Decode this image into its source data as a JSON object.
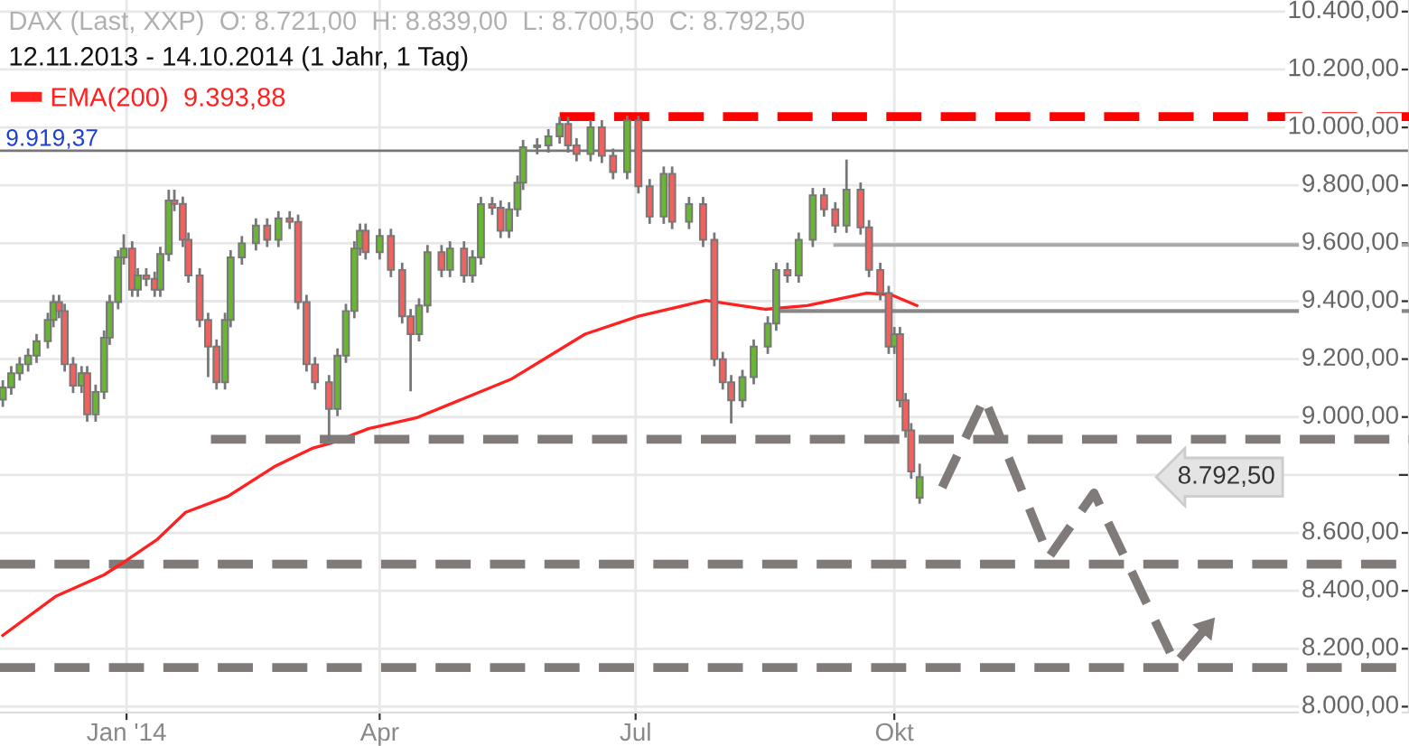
{
  "chart_data": {
    "type": "candlestick",
    "title": "DAX (Last, XXP)  O: 8.721,00  H: 8.839,00  L: 8.700,50  C: 8.792,50",
    "subtitle": "12.11.2013 - 14.10.2014 (1 Jahr, 1 Tag)",
    "x": [
      "2013-11-18",
      "2013-11-21",
      "2013-11-24",
      "2013-11-27",
      "2013-11-30",
      "2013-12-04",
      "2013-12-06",
      "2013-12-08",
      "2013-12-10",
      "2013-12-13",
      "2013-12-16",
      "2013-12-18",
      "2013-12-21",
      "2013-12-24",
      "2013-12-26",
      "2013-12-29",
      "2013-12-31",
      "2014-01-03",
      "2014-01-05",
      "2014-01-08",
      "2014-01-11",
      "2014-01-13",
      "2014-01-16",
      "2014-01-18",
      "2014-01-21",
      "2014-01-23",
      "2014-01-27",
      "2014-01-30",
      "2014-02-02",
      "2014-02-05",
      "2014-02-07",
      "2014-02-11",
      "2014-02-16",
      "2014-02-20",
      "2014-02-24",
      "2014-02-28",
      "2014-03-03",
      "2014-03-06",
      "2014-03-09",
      "2014-03-14",
      "2014-03-17",
      "2014-03-20",
      "2014-03-23",
      "2014-03-25",
      "2014-03-27",
      "2014-04-01",
      "2014-04-05",
      "2014-04-09",
      "2014-04-12",
      "2014-04-15",
      "2014-04-18",
      "2014-04-23",
      "2014-04-26",
      "2014-05-01",
      "2014-05-04",
      "2014-05-07",
      "2014-05-11",
      "2014-05-14",
      "2014-05-17",
      "2014-05-20",
      "2014-05-22",
      "2014-05-27",
      "2014-05-31",
      "2014-06-04",
      "2014-06-07",
      "2014-06-10",
      "2014-06-15",
      "2014-06-19",
      "2014-06-23",
      "2014-06-28",
      "2014-07-02",
      "2014-07-06",
      "2014-07-11",
      "2014-07-14",
      "2014-07-20",
      "2014-07-25",
      "2014-07-29",
      "2014-08-01",
      "2014-08-04",
      "2014-08-08",
      "2014-08-12",
      "2014-08-17",
      "2014-08-20",
      "2014-08-24",
      "2014-08-28",
      "2014-09-02",
      "2014-09-06",
      "2014-09-10",
      "2014-09-14",
      "2014-09-19",
      "2014-09-22",
      "2014-09-26",
      "2014-09-29",
      "2014-10-01",
      "2014-10-03",
      "2014-10-05",
      "2014-10-07",
      "2014-10-10"
    ],
    "ohlc": [
      [
        9060,
        9127,
        9035,
        9102
      ],
      [
        9102,
        9176,
        9077,
        9151
      ],
      [
        9151,
        9207,
        9126,
        9182
      ],
      [
        9182,
        9237,
        9157,
        9212
      ],
      [
        9212,
        9287,
        9187,
        9262
      ],
      [
        9262,
        9360,
        9237,
        9335
      ],
      [
        9335,
        9422,
        9310,
        9397
      ],
      [
        9397,
        9422,
        9341,
        9366
      ],
      [
        9366,
        9391,
        9157,
        9182
      ],
      [
        9182,
        9207,
        9083,
        9108
      ],
      [
        9108,
        9176,
        9083,
        9151
      ],
      [
        9151,
        9176,
        8984,
        9009
      ],
      [
        9009,
        9112,
        8984,
        9087
      ],
      [
        9087,
        9299,
        9062,
        9274
      ],
      [
        9274,
        9422,
        9249,
        9397
      ],
      [
        9397,
        9576,
        9372,
        9551
      ],
      [
        9551,
        9631,
        9526,
        9582
      ],
      [
        9582,
        9607,
        9415,
        9440
      ],
      [
        9440,
        9514,
        9415,
        9489
      ],
      [
        9489,
        9514,
        9452,
        9477
      ],
      [
        9477,
        9502,
        9415,
        9440
      ],
      [
        9440,
        9588,
        9415,
        9563
      ],
      [
        9563,
        9785,
        9538,
        9748
      ],
      [
        9748,
        9785,
        9711,
        9736
      ],
      [
        9736,
        9761,
        9587,
        9612
      ],
      [
        9612,
        9637,
        9464,
        9489
      ],
      [
        9489,
        9514,
        9310,
        9335
      ],
      [
        9335,
        9360,
        9138,
        9243
      ],
      [
        9243,
        9268,
        9095,
        9120
      ],
      [
        9120,
        9360,
        9095,
        9335
      ],
      [
        9335,
        9576,
        9310,
        9551
      ],
      [
        9551,
        9625,
        9526,
        9600
      ],
      [
        9600,
        9686,
        9575,
        9661
      ],
      [
        9661,
        9686,
        9587,
        9612
      ],
      [
        9612,
        9711,
        9587,
        9686
      ],
      [
        9686,
        9711,
        9649,
        9674
      ],
      [
        9674,
        9699,
        9372,
        9397
      ],
      [
        9397,
        9422,
        9157,
        9182
      ],
      [
        9182,
        9207,
        9095,
        9120
      ],
      [
        9120,
        9145,
        8917,
        9028
      ],
      [
        9028,
        9237,
        9003,
        9212
      ],
      [
        9212,
        9391,
        9187,
        9366
      ],
      [
        9366,
        9607,
        9341,
        9582
      ],
      [
        9582,
        9668,
        9557,
        9643
      ],
      [
        9643,
        9668,
        9544,
        9569
      ],
      [
        9569,
        9650,
        9544,
        9625
      ],
      [
        9625,
        9650,
        9483,
        9508
      ],
      [
        9508,
        9533,
        9323,
        9348
      ],
      [
        9348,
        9373,
        9089,
        9286
      ],
      [
        9286,
        9410,
        9261,
        9385
      ],
      [
        9385,
        9594,
        9360,
        9569
      ],
      [
        9569,
        9594,
        9483,
        9508
      ],
      [
        9508,
        9607,
        9483,
        9582
      ],
      [
        9582,
        9607,
        9464,
        9489
      ],
      [
        9489,
        9576,
        9464,
        9551
      ],
      [
        9551,
        9760,
        9526,
        9735
      ],
      [
        9735,
        9760,
        9698,
        9723
      ],
      [
        9723,
        9748,
        9618,
        9643
      ],
      [
        9643,
        9742,
        9618,
        9717
      ],
      [
        9717,
        9834,
        9692,
        9809
      ],
      [
        9809,
        9957,
        9784,
        9932
      ],
      [
        9932,
        9963,
        9907,
        9938
      ],
      [
        9938,
        9994,
        9913,
        9969
      ],
      [
        9969,
        10037,
        9944,
        10012
      ],
      [
        10012,
        10037,
        9913,
        9938
      ],
      [
        9938,
        9963,
        9883,
        9908
      ],
      [
        9908,
        10025,
        9883,
        10000
      ],
      [
        10000,
        10025,
        9877,
        9902
      ],
      [
        9902,
        9927,
        9821,
        9846
      ],
      [
        9846,
        10040,
        9821,
        10024
      ],
      [
        10024,
        10040,
        9772,
        9797
      ],
      [
        9797,
        9822,
        9667,
        9692
      ],
      [
        9692,
        9865,
        9667,
        9840
      ],
      [
        9840,
        9865,
        9649,
        9674
      ],
      [
        9674,
        9760,
        9649,
        9735
      ],
      [
        9735,
        9760,
        9587,
        9612
      ],
      [
        9612,
        9637,
        9175,
        9200
      ],
      [
        9200,
        9225,
        9095,
        9120
      ],
      [
        9120,
        9145,
        8978,
        9058
      ],
      [
        9058,
        9163,
        9033,
        9138
      ],
      [
        9138,
        9268,
        9113,
        9243
      ],
      [
        9243,
        9348,
        9218,
        9323
      ],
      [
        9323,
        9533,
        9298,
        9508
      ],
      [
        9508,
        9533,
        9464,
        9489
      ],
      [
        9489,
        9637,
        9464,
        9612
      ],
      [
        9612,
        9791,
        9587,
        9766
      ],
      [
        9766,
        9791,
        9692,
        9717
      ],
      [
        9717,
        9742,
        9636,
        9661
      ],
      [
        9661,
        9889,
        9636,
        9785
      ],
      [
        9785,
        9810,
        9630,
        9655
      ],
      [
        9655,
        9680,
        9483,
        9508
      ],
      [
        9508,
        9533,
        9403,
        9428
      ],
      [
        9428,
        9453,
        9218,
        9243
      ],
      [
        9243,
        9311,
        9218,
        9286
      ],
      [
        9286,
        9311,
        9033,
        9058
      ],
      [
        9058,
        9083,
        8929,
        8954
      ],
      [
        8954,
        8979,
        8787,
        8812
      ],
      [
        8721,
        8839,
        8700.5,
        8792.5
      ]
    ],
    "colors": [
      "#6ab536",
      "#6ab536",
      "#6ab536",
      "#6ab536",
      "#6ab536",
      "#6ab536",
      "#6ab536",
      "#f0625f",
      "#f0625f",
      "#f0625f",
      "#6ab536",
      "#f0625f",
      "#6ab536",
      "#6ab536",
      "#6ab536",
      "#6ab536",
      "#6ab536",
      "#f0625f",
      "#6ab536",
      "#f0625f",
      "#f0625f",
      "#6ab536",
      "#6ab536",
      "#f0625f",
      "#f0625f",
      "#f0625f",
      "#f0625f",
      "#f0625f",
      "#f0625f",
      "#6ab536",
      "#6ab536",
      "#6ab536",
      "#6ab536",
      "#f0625f",
      "#6ab536",
      "#f0625f",
      "#f0625f",
      "#f0625f",
      "#f0625f",
      "#f0625f",
      "#6ab536",
      "#6ab536",
      "#6ab536",
      "#6ab536",
      "#f0625f",
      "#6ab536",
      "#f0625f",
      "#f0625f",
      "#f0625f",
      "#6ab536",
      "#6ab536",
      "#f0625f",
      "#6ab536",
      "#f0625f",
      "#6ab536",
      "#6ab536",
      "#f0625f",
      "#f0625f",
      "#6ab536",
      "#6ab536",
      "#6ab536",
      "#6ab536",
      "#6ab536",
      "#6ab536",
      "#f0625f",
      "#f0625f",
      "#6ab536",
      "#f0625f",
      "#f0625f",
      "#6ab536",
      "#f0625f",
      "#f0625f",
      "#6ab536",
      "#f0625f",
      "#6ab536",
      "#f0625f",
      "#f0625f",
      "#f0625f",
      "#f0625f",
      "#6ab536",
      "#6ab536",
      "#6ab536",
      "#6ab536",
      "#f0625f",
      "#6ab536",
      "#6ab536",
      "#f0625f",
      "#f0625f",
      "#6ab536",
      "#f0625f",
      "#f0625f",
      "#f0625f",
      "#f0625f",
      "#6ab536",
      "#f0625f",
      "#f0625f",
      "#f0625f",
      "#6ab536"
    ],
    "series": [
      {
        "type": "line",
        "name": "EMA(200)  9.393,88",
        "color": "#ff2020",
        "line_style": "solid",
        "x": [
          "2013-11-18",
          "2013-12-07",
          "2013-12-24",
          "2014-01-01",
          "2014-01-12",
          "2014-01-22",
          "2014-02-06",
          "2014-02-23",
          "2014-03-08",
          "2014-03-15",
          "2014-03-28",
          "2014-04-14",
          "2014-05-18",
          "2014-06-13",
          "2014-07-02",
          "2014-07-26",
          "2014-08-16",
          "2014-08-31",
          "2014-09-21",
          "2014-09-30",
          "2014-10-09"
        ],
        "values": [
          8246,
          8382,
          8455,
          8505,
          8578,
          8671,
          8726,
          8831,
          8892,
          8911,
          8960,
          8997,
          9132,
          9286,
          9348,
          9403,
          9372,
          9385,
          9428,
          9422,
          9385
        ]
      },
      {
        "type": "line",
        "color": "#ff0000",
        "line_style": "dashed",
        "x": [
          "2014-06-04",
          "2015-04-02"
        ],
        "values": [
          10037,
          10037
        ]
      },
      {
        "type": "line",
        "color": "#aaaaaa",
        "line_style": "solid",
        "x": [
          "2014-09-10",
          "2015-04-02"
        ],
        "values": [
          9594,
          9594
        ]
      },
      {
        "type": "line",
        "color": "#888888",
        "line_style": "solid",
        "x": [
          "2014-08-21",
          "2015-04-02"
        ],
        "values": [
          9366,
          9366
        ]
      },
      {
        "type": "line",
        "color": "#807b79",
        "line_style": "dashed",
        "x": [
          "2014-01-31",
          "2015-04-02"
        ],
        "values": [
          8923,
          8923
        ]
      },
      {
        "type": "line",
        "color": "#807b79",
        "line_style": "dashed",
        "x": [
          "2014-10-18",
          "2014-11-02",
          "2014-11-25",
          "2014-12-11",
          "2015-01-09",
          "2015-01-23"
        ],
        "values": [
          8757,
          9065,
          8517,
          8738,
          8148,
          8308
        ]
      }
    ],
    "ref_lines": [
      {
        "axis": "y",
        "value": 9919.37,
        "label": "9.919,37",
        "color": "#777777",
        "line_style": "solid"
      },
      {
        "axis": "y",
        "value": 8492,
        "color": "#807b79",
        "line_style": "dashed"
      },
      {
        "axis": "y",
        "value": 8135,
        "color": "#807b79",
        "line_style": "dashed"
      }
    ],
    "annotations": [
      "8.792,50"
    ],
    "xlim": [
      "2013-11-17",
      "2015-04-02"
    ],
    "xticks": [
      {
        "value": "2014-01-01",
        "label": "Jan '14"
      },
      {
        "value": "2014-04-01",
        "label": "Apr"
      },
      {
        "value": "2014-07-01",
        "label": "Jul"
      },
      {
        "value": "2014-10-01",
        "label": "Okt"
      }
    ],
    "ylim": [
      7980,
      10440
    ],
    "yticks": [
      {
        "value": 8000,
        "label": "8.000,00"
      },
      {
        "value": 8200,
        "label": "8.200,00"
      },
      {
        "value": 8400,
        "label": "8.400,00"
      },
      {
        "value": 8600,
        "label": "8.600,00"
      },
      {
        "value": 8800,
        "label": null
      },
      {
        "value": 9000,
        "label": "9.000,00"
      },
      {
        "value": 9200,
        "label": "9.200,00"
      },
      {
        "value": 9400,
        "label": "9.400,00"
      },
      {
        "value": 9600,
        "label": "9.600,00"
      },
      {
        "value": 9800,
        "label": "9.800,00"
      },
      {
        "value": 10000,
        "label": "10.000,00"
      },
      {
        "value": 10200,
        "label": "10.200,00"
      },
      {
        "value": 10400,
        "label": "10.400,00"
      }
    ],
    "grid": true,
    "legend": "top left"
  }
}
